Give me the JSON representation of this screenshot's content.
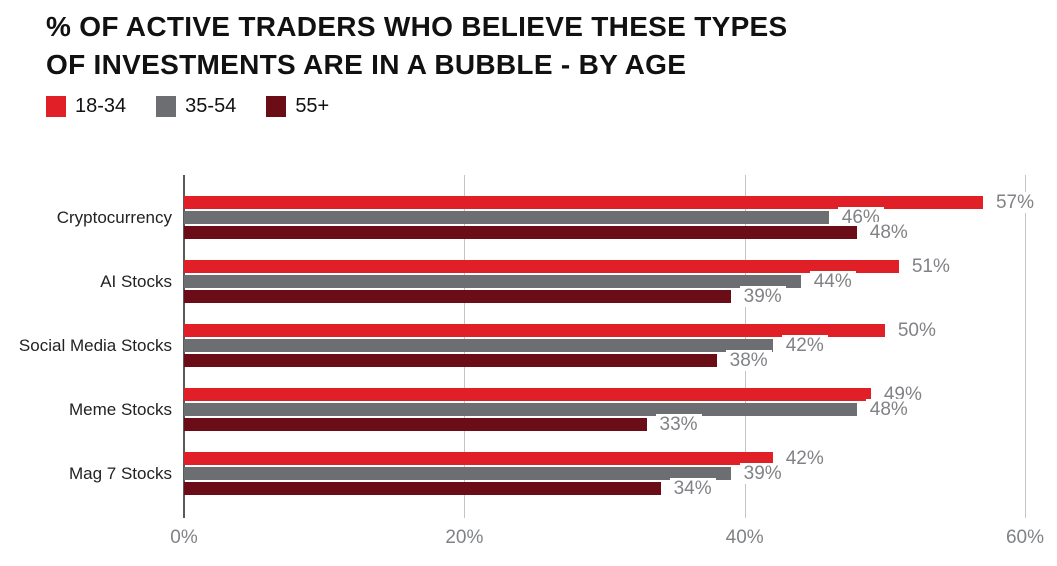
{
  "header": {
    "title_line1": "% OF ACTIVE TRADERS WHO BELIEVE THESE TYPES",
    "title_line2": "OF INVESTMENTS ARE IN A BUBBLE - BY AGE"
  },
  "legend": {
    "items": [
      {
        "label": "18-34",
        "color": "#E01F26"
      },
      {
        "label": "35-54",
        "color": "#6D6E71"
      },
      {
        "label": "55+",
        "color": "#6A0D16"
      }
    ]
  },
  "chart_data": {
    "type": "bar",
    "orientation": "horizontal",
    "title": "% OF ACTIVE TRADERS WHO BELIEVE THESE TYPES OF INVESTMENTS ARE IN A BUBBLE - BY AGE",
    "categories": [
      "Cryptocurrency",
      "AI Stocks",
      "Social Media Stocks",
      "Meme Stocks",
      "Mag 7 Stocks"
    ],
    "series": [
      {
        "name": "18-34",
        "color": "#E01F26",
        "values": [
          57,
          51,
          50,
          49,
          42
        ]
      },
      {
        "name": "35-54",
        "color": "#6D6E71",
        "values": [
          46,
          44,
          42,
          48,
          39
        ]
      },
      {
        "name": "55+",
        "color": "#6A0D16",
        "values": [
          48,
          39,
          38,
          33,
          34
        ]
      }
    ],
    "value_suffix": "%",
    "x_tick_values": [
      0,
      20,
      40,
      60
    ],
    "x_tick_labels": [
      "0%",
      "20%",
      "40%",
      "60%"
    ],
    "xlim": [
      0,
      60
    ],
    "grid": true,
    "legend_position": "top-left",
    "styles": {
      "axis_color": "#58595B",
      "grid_color": "#C3C4C6",
      "value_label_color": "#808285",
      "category_label_color": "#222222"
    }
  }
}
